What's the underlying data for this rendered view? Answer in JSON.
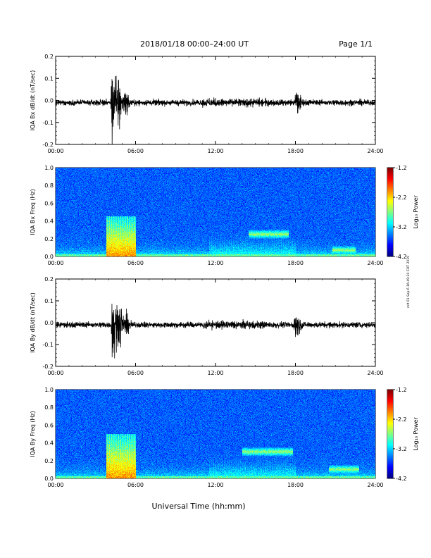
{
  "header": {
    "title": "2018/01/18  00:00–24:00 UT",
    "page": "Page 1/1"
  },
  "side_stamp": "mlt 01 Sep 6 16:49:20 CDT 2019",
  "xlabel": "Universal Time (hh:mm)",
  "x_ticks": [
    "00:00",
    "06:00",
    "12:00",
    "18:00",
    "24:00"
  ],
  "colorbar": {
    "label": "Log₁₀ Power",
    "ticks": [
      "-1.2",
      "-2.2",
      "-3.2",
      "-4.2"
    ],
    "range": [
      -4.2,
      -1.2
    ]
  },
  "chart_data": [
    {
      "type": "line",
      "ylabel": "IQA Bx dB/dt (nT/sec)",
      "xlim": [
        0,
        24
      ],
      "ylim": [
        -0.2,
        0.2
      ],
      "y_ticks": [
        "0.2",
        "0.1",
        "0.0",
        "-0.1",
        "-0.2"
      ],
      "background_amplitude": 0.012,
      "bursts": [
        {
          "t": 4.25,
          "amplitude": 0.2
        },
        {
          "t": 4.7,
          "amplitude": 0.14
        },
        {
          "t": 5.2,
          "amplitude": 0.06
        },
        {
          "t": 18.05,
          "amplitude": 0.07
        }
      ]
    },
    {
      "type": "heatmap",
      "ylabel": "IQA Bx Freq (Hz)",
      "xlim": [
        0,
        24
      ],
      "ylim": [
        0,
        1.0
      ],
      "y_ticks": [
        "1.0",
        "0.8",
        "0.6",
        "0.4",
        "0.2",
        "0.0"
      ],
      "features": [
        {
          "t_start": 3.8,
          "t_end": 6.0,
          "f_max": 0.45,
          "level": -2.0
        },
        {
          "t_start": 11.5,
          "t_end": 18.0,
          "f_max": 0.35,
          "level": -3.0
        },
        {
          "t_start": 14.5,
          "t_end": 17.5,
          "f_center": 0.25,
          "level": -2.6
        },
        {
          "t_start": 20.8,
          "t_end": 22.5,
          "f_center": 0.07,
          "level": -2.6
        }
      ]
    },
    {
      "type": "line",
      "ylabel": "IQA By dB/dt (nT/sec)",
      "xlim": [
        0,
        24
      ],
      "ylim": [
        -0.2,
        0.2
      ],
      "y_ticks": [
        "0.2",
        "0.1",
        "0.0",
        "-0.1",
        "-0.2"
      ],
      "background_amplitude": 0.012,
      "bursts": [
        {
          "t": 4.3,
          "amplitude": 0.2
        },
        {
          "t": 4.8,
          "amplitude": 0.12
        },
        {
          "t": 5.3,
          "amplitude": 0.05
        },
        {
          "t": 18.0,
          "amplitude": 0.08
        }
      ]
    },
    {
      "type": "heatmap",
      "ylabel": "IQA By Freq (Hz)",
      "xlim": [
        0,
        24
      ],
      "ylim": [
        0,
        1.0
      ],
      "y_ticks": [
        "1.0",
        "0.8",
        "0.6",
        "0.4",
        "0.2",
        "0.0"
      ],
      "features": [
        {
          "t_start": 3.8,
          "t_end": 6.0,
          "f_max": 0.5,
          "level": -2.0
        },
        {
          "t_start": 11.5,
          "t_end": 18.0,
          "f_max": 0.35,
          "level": -3.0
        },
        {
          "t_start": 14.0,
          "t_end": 17.8,
          "f_center": 0.3,
          "level": -2.6
        },
        {
          "t_start": 20.5,
          "t_end": 22.8,
          "f_center": 0.1,
          "level": -2.6
        }
      ]
    }
  ]
}
